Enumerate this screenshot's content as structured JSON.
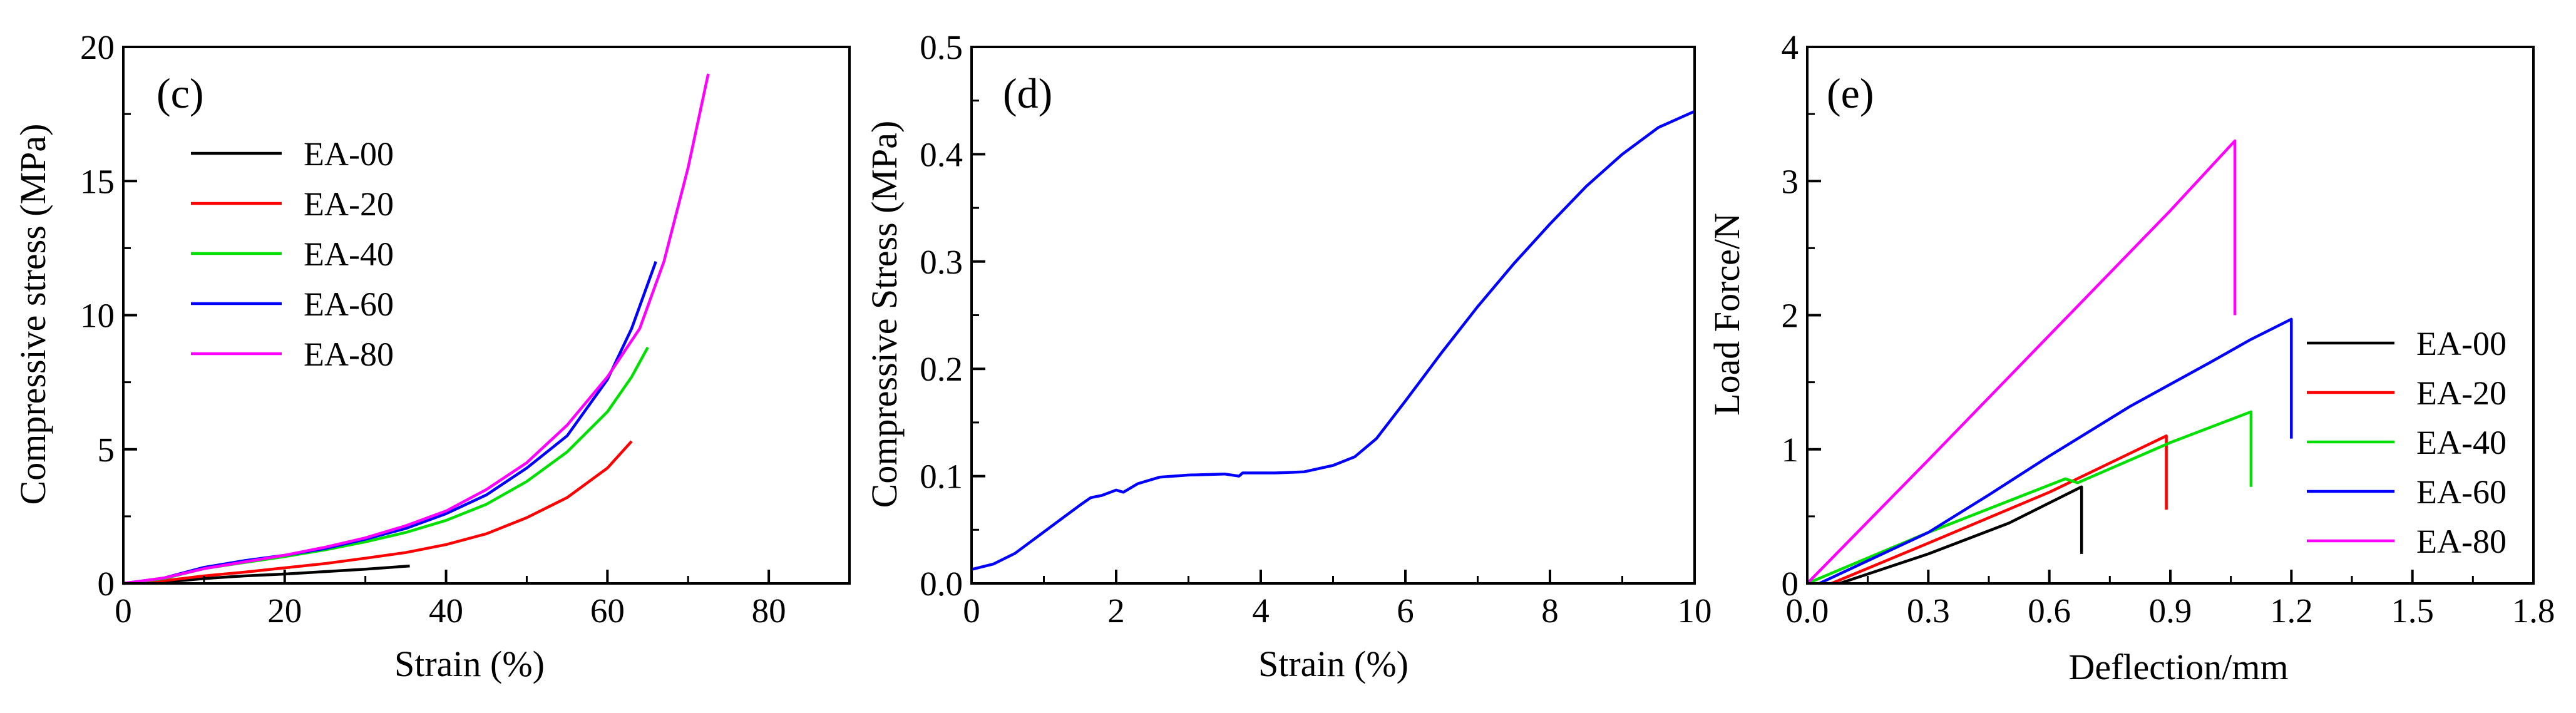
{
  "chart_data": [
    {
      "type": "line",
      "panel_label": "(c)",
      "xlabel": "Strain (%)",
      "ylabel": "Compressive stress (MPa)",
      "xlim": [
        0,
        90
      ],
      "ylim": [
        0,
        20
      ],
      "x_ticks": [
        0,
        20,
        40,
        60,
        80
      ],
      "y_ticks": [
        0,
        5,
        10,
        15,
        20
      ],
      "x_tick_labels": [
        "0",
        "20",
        "40",
        "60",
        "80"
      ],
      "y_tick_labels": [
        "0",
        "5",
        "10",
        "15",
        "20"
      ],
      "legend_position": "upper-left",
      "series": [
        {
          "name": "EA-00",
          "color": "#000000",
          "points": [
            [
              0,
              0
            ],
            [
              5,
              0.05
            ],
            [
              10,
              0.18
            ],
            [
              15,
              0.28
            ],
            [
              20,
              0.35
            ],
            [
              25,
              0.44
            ],
            [
              30,
              0.53
            ],
            [
              35.5,
              0.65
            ]
          ],
          "end_drop_to": null
        },
        {
          "name": "EA-20",
          "color": "#ff0000",
          "points": [
            [
              0,
              0
            ],
            [
              5,
              0.1
            ],
            [
              10,
              0.28
            ],
            [
              15,
              0.42
            ],
            [
              20,
              0.58
            ],
            [
              25,
              0.74
            ],
            [
              30,
              0.94
            ],
            [
              35,
              1.15
            ],
            [
              40,
              1.45
            ],
            [
              45,
              1.85
            ],
            [
              50,
              2.45
            ],
            [
              55,
              3.2
            ],
            [
              60,
              4.3
            ],
            [
              63,
              5.3
            ]
          ],
          "end_drop_to": null
        },
        {
          "name": "EA-40",
          "color": "#00e000",
          "points": [
            [
              0,
              0
            ],
            [
              5,
              0.18
            ],
            [
              10,
              0.55
            ],
            [
              15,
              0.78
            ],
            [
              20,
              1.0
            ],
            [
              25,
              1.25
            ],
            [
              30,
              1.55
            ],
            [
              35,
              1.9
            ],
            [
              40,
              2.35
            ],
            [
              45,
              2.95
            ],
            [
              50,
              3.8
            ],
            [
              55,
              4.9
            ],
            [
              60,
              6.4
            ],
            [
              63,
              7.7
            ],
            [
              65,
              8.8
            ]
          ],
          "end_drop_to": null
        },
        {
          "name": "EA-60",
          "color": "#0000ff",
          "points": [
            [
              0,
              0
            ],
            [
              5,
              0.2
            ],
            [
              10,
              0.6
            ],
            [
              15,
              0.85
            ],
            [
              20,
              1.05
            ],
            [
              25,
              1.3
            ],
            [
              30,
              1.65
            ],
            [
              35,
              2.05
            ],
            [
              40,
              2.6
            ],
            [
              45,
              3.3
            ],
            [
              50,
              4.3
            ],
            [
              55,
              5.5
            ],
            [
              60,
              7.6
            ],
            [
              63,
              9.5
            ],
            [
              66,
              12.0
            ]
          ],
          "end_drop_to": null
        },
        {
          "name": "EA-80",
          "color": "#ff00ff",
          "points": [
            [
              0,
              0
            ],
            [
              5,
              0.2
            ],
            [
              10,
              0.55
            ],
            [
              15,
              0.8
            ],
            [
              20,
              1.05
            ],
            [
              25,
              1.35
            ],
            [
              30,
              1.7
            ],
            [
              35,
              2.15
            ],
            [
              40,
              2.7
            ],
            [
              45,
              3.5
            ],
            [
              50,
              4.5
            ],
            [
              55,
              5.9
            ],
            [
              60,
              7.7
            ],
            [
              64,
              9.5
            ],
            [
              67,
              12.0
            ],
            [
              70,
              15.5
            ],
            [
              72.5,
              19.0
            ]
          ],
          "end_drop_to": null
        }
      ]
    },
    {
      "type": "line",
      "panel_label": "(d)",
      "xlabel": "Strain (%)",
      "ylabel": "Compressive Stress (MPa)",
      "xlim": [
        0,
        10
      ],
      "ylim": [
        0,
        0.5
      ],
      "x_ticks": [
        0,
        2,
        4,
        6,
        8,
        10
      ],
      "y_ticks": [
        0.0,
        0.1,
        0.2,
        0.3,
        0.4,
        0.5
      ],
      "x_tick_labels": [
        "0",
        "2",
        "4",
        "6",
        "8",
        "10"
      ],
      "y_tick_labels": [
        "0.0",
        "0.1",
        "0.2",
        "0.3",
        "0.4",
        "0.5"
      ],
      "series": [
        {
          "name": "",
          "color": "#0000ff",
          "points": [
            [
              0,
              0.013
            ],
            [
              0.3,
              0.018
            ],
            [
              0.6,
              0.028
            ],
            [
              0.9,
              0.043
            ],
            [
              1.2,
              0.058
            ],
            [
              1.5,
              0.073
            ],
            [
              1.65,
              0.08
            ],
            [
              1.8,
              0.082
            ],
            [
              2.0,
              0.087
            ],
            [
              2.1,
              0.085
            ],
            [
              2.3,
              0.093
            ],
            [
              2.6,
              0.099
            ],
            [
              3.0,
              0.101
            ],
            [
              3.5,
              0.102
            ],
            [
              3.7,
              0.1
            ],
            [
              3.75,
              0.103
            ],
            [
              4.2,
              0.103
            ],
            [
              4.6,
              0.104
            ],
            [
              5.0,
              0.11
            ],
            [
              5.3,
              0.118
            ],
            [
              5.6,
              0.135
            ],
            [
              6.0,
              0.17
            ],
            [
              6.5,
              0.215
            ],
            [
              7.0,
              0.258
            ],
            [
              7.5,
              0.298
            ],
            [
              8.0,
              0.335
            ],
            [
              8.5,
              0.37
            ],
            [
              9.0,
              0.4
            ],
            [
              9.5,
              0.425
            ],
            [
              10.0,
              0.44
            ]
          ],
          "end_drop_to": null
        }
      ]
    },
    {
      "type": "line",
      "panel_label": "(e)",
      "xlabel": "Deflection/mm",
      "ylabel": "Load Force/N",
      "xlim": [
        0,
        1.8
      ],
      "ylim": [
        0,
        4
      ],
      "x_ticks": [
        0.0,
        0.3,
        0.6,
        0.9,
        1.2,
        1.5,
        1.8
      ],
      "y_ticks": [
        0,
        1,
        2,
        3,
        4
      ],
      "x_tick_labels": [
        "0.0",
        "0.3",
        "0.6",
        "0.9",
        "1.2",
        "1.5",
        "1.8"
      ],
      "y_tick_labels": [
        "0",
        "1",
        "2",
        "3",
        "4"
      ],
      "legend_position": "lower-right",
      "series": [
        {
          "name": "EA-00",
          "color": "#000000",
          "points": [
            [
              0.08,
              0
            ],
            [
              0.3,
              0.22
            ],
            [
              0.5,
              0.45
            ],
            [
              0.68,
              0.72
            ]
          ],
          "end_drop_to": 0.22
        },
        {
          "name": "EA-20",
          "color": "#ff0000",
          "points": [
            [
              0.06,
              0
            ],
            [
              0.3,
              0.3
            ],
            [
              0.6,
              0.68
            ],
            [
              0.89,
              1.1
            ]
          ],
          "end_drop_to": 0.55
        },
        {
          "name": "EA-40",
          "color": "#00e000",
          "points": [
            [
              0,
              0
            ],
            [
              0.3,
              0.38
            ],
            [
              0.64,
              0.78
            ],
            [
              0.67,
              0.75
            ],
            [
              0.9,
              1.05
            ],
            [
              1.1,
              1.28
            ]
          ],
          "end_drop_to": 0.72
        },
        {
          "name": "EA-60",
          "color": "#0000ff",
          "points": [
            [
              0.03,
              0
            ],
            [
              0.3,
              0.38
            ],
            [
              0.45,
              0.66
            ],
            [
              0.6,
              0.95
            ],
            [
              0.8,
              1.32
            ],
            [
              1.0,
              1.65
            ],
            [
              1.1,
              1.82
            ],
            [
              1.2,
              1.97
            ]
          ],
          "end_drop_to": 1.08
        },
        {
          "name": "EA-80",
          "color": "#ff00ff",
          "points": [
            [
              0,
              0
            ],
            [
              0.3,
              0.92
            ],
            [
              0.6,
              1.85
            ],
            [
              0.9,
              2.78
            ],
            [
              1.06,
              3.3
            ]
          ],
          "end_drop_to": 2.0
        }
      ]
    }
  ]
}
